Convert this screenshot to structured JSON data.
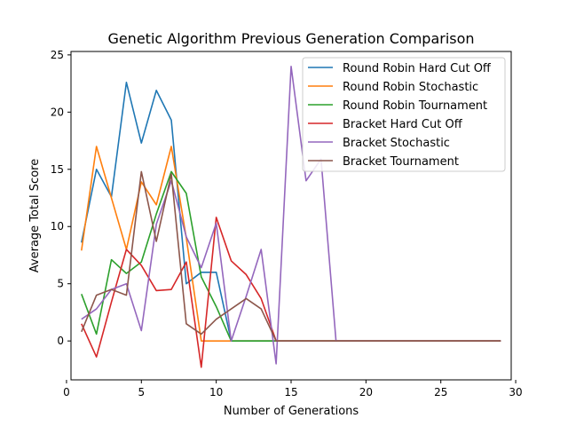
{
  "chart_data": {
    "type": "line",
    "title": "Genetic Algorithm Previous Generation Comparison",
    "xlabel": "Number of Generations",
    "ylabel": "Average Total Score",
    "xlim": [
      0.3,
      29.7
    ],
    "ylim": [
      -3.4,
      25.3
    ],
    "xticks": [
      0,
      5,
      10,
      15,
      20,
      25,
      30
    ],
    "yticks": [
      0,
      5,
      10,
      15,
      20,
      25
    ],
    "grid": false,
    "legend_position": "top-right",
    "x": [
      1,
      2,
      3,
      4,
      5,
      6,
      7,
      8,
      9,
      10,
      11,
      12,
      13,
      14,
      15,
      16,
      17,
      18,
      19,
      20,
      21,
      22,
      23,
      24,
      25,
      26,
      27,
      28,
      29
    ],
    "series": [
      {
        "name": "Round Robin Hard Cut Off",
        "color": "#1f77b4",
        "values": [
          8.6,
          15.0,
          12.6,
          22.6,
          17.3,
          21.9,
          19.3,
          5.0,
          6.0,
          6.0,
          0,
          0,
          0,
          0,
          0,
          0,
          0,
          0,
          0,
          0,
          0,
          0,
          0,
          0,
          0,
          0,
          0,
          0,
          0
        ]
      },
      {
        "name": "Round Robin Stochastic",
        "color": "#ff7f0e",
        "values": [
          7.9,
          17.0,
          12.5,
          8.0,
          13.9,
          11.9,
          17.0,
          9.0,
          0,
          0,
          0,
          0,
          0,
          0,
          0,
          0,
          0,
          0,
          0,
          0,
          0,
          0,
          0,
          0,
          0,
          0,
          0,
          0,
          0
        ]
      },
      {
        "name": "Round Robin Tournament",
        "color": "#2ca02c",
        "values": [
          4.1,
          0.6,
          7.1,
          5.9,
          6.9,
          11.1,
          14.8,
          12.9,
          5.6,
          3.0,
          0,
          0,
          0,
          0,
          0,
          0,
          0,
          0,
          0,
          0,
          0,
          0,
          0,
          0,
          0,
          0,
          0,
          0,
          0
        ]
      },
      {
        "name": "Bracket Hard Cut Off",
        "color": "#d62728",
        "values": [
          1.5,
          -1.4,
          3.4,
          8.0,
          6.6,
          4.4,
          4.5,
          6.9,
          -2.3,
          10.8,
          7.0,
          5.8,
          3.7,
          0,
          0,
          0,
          0,
          0,
          0,
          0,
          0,
          0,
          0,
          0,
          0,
          0,
          0,
          0,
          0
        ]
      },
      {
        "name": "Bracket Stochastic",
        "color": "#9467bd",
        "values": [
          1.9,
          2.8,
          4.5,
          5.0,
          0.9,
          10.2,
          14.0,
          9.1,
          6.4,
          10.3,
          0,
          3.9,
          8.0,
          -2.0,
          24.0,
          14.0,
          15.9,
          0,
          0,
          0,
          0,
          0,
          0,
          0,
          0,
          0,
          0,
          0,
          0
        ]
      },
      {
        "name": "Bracket Tournament",
        "color": "#8c564b",
        "values": [
          0.8,
          4.0,
          4.5,
          4.0,
          14.8,
          8.7,
          14.6,
          1.5,
          0.6,
          1.9,
          2.8,
          3.7,
          2.8,
          0,
          0,
          0,
          0,
          0,
          0,
          0,
          0,
          0,
          0,
          0,
          0,
          0,
          0,
          0,
          0
        ]
      }
    ]
  }
}
